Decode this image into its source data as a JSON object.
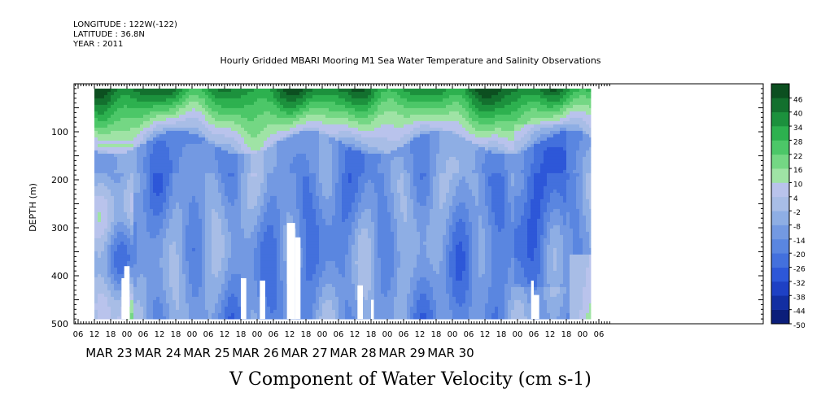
{
  "header": {
    "longitude": "LONGITUDE : 122W(-122)",
    "latitude": "LATITUDE : 36.8N",
    "year": "YEAR : 2011"
  },
  "chart_data": {
    "type": "heatmap",
    "title": "Hourly Gridded MBARI Mooring M1 Sea Water Temperature and Salinity Observations",
    "xlabel": "V Component of Water Velocity (cm s-1)",
    "ylabel": "DEPTH (m)",
    "y_range": [
      0,
      500
    ],
    "y_inverted": true,
    "y_ticks": [
      100,
      200,
      300,
      400,
      500
    ],
    "x_range_hours": [
      0,
      180
    ],
    "hour_ticks": [
      {
        "h": 0,
        "label": "06"
      },
      {
        "h": 6,
        "label": "12"
      },
      {
        "h": 12,
        "label": "18"
      },
      {
        "h": 18,
        "label": "00"
      },
      {
        "h": 24,
        "label": "06"
      },
      {
        "h": 30,
        "label": "12"
      },
      {
        "h": 36,
        "label": "18"
      },
      {
        "h": 42,
        "label": "00"
      },
      {
        "h": 48,
        "label": "06"
      },
      {
        "h": 54,
        "label": "12"
      },
      {
        "h": 60,
        "label": "18"
      },
      {
        "h": 66,
        "label": "00"
      },
      {
        "h": 72,
        "label": "06"
      },
      {
        "h": 78,
        "label": "12"
      },
      {
        "h": 84,
        "label": "18"
      },
      {
        "h": 90,
        "label": "00"
      },
      {
        "h": 96,
        "label": "06"
      },
      {
        "h": 102,
        "label": "12"
      },
      {
        "h": 108,
        "label": "18"
      },
      {
        "h": 114,
        "label": "00"
      },
      {
        "h": 120,
        "label": "06"
      },
      {
        "h": 126,
        "label": "12"
      },
      {
        "h": 132,
        "label": "18"
      },
      {
        "h": 138,
        "label": "00"
      },
      {
        "h": 144,
        "label": "06"
      },
      {
        "h": 150,
        "label": "12"
      },
      {
        "h": 156,
        "label": "18"
      },
      {
        "h": 162,
        "label": "00"
      },
      {
        "h": 168,
        "label": "06"
      },
      {
        "h": 174,
        "label": "12"
      },
      {
        "h": 180,
        "label": "18"
      },
      {
        "h": 186,
        "label": "00"
      },
      {
        "h": 192,
        "label": "06"
      }
    ],
    "date_labels": [
      {
        "h": 6,
        "label": "MAR 23"
      },
      {
        "h": 24,
        "label": "MAR 24"
      },
      {
        "h": 42,
        "label": "MAR 25"
      },
      {
        "h": 60,
        "label": "MAR 26"
      },
      {
        "h": 78,
        "label": "MAR 27"
      },
      {
        "h": 96,
        "label": "MAR 28"
      },
      {
        "h": 114,
        "label": "MAR 29"
      },
      {
        "h": 132,
        "label": "MAR 30"
      }
    ],
    "colorbar": {
      "levels": [
        -50,
        -44,
        -38,
        -32,
        -26,
        -20,
        -14,
        -8,
        -2,
        4,
        10,
        16,
        22,
        28,
        34,
        40,
        46
      ],
      "label_levels": [
        46,
        40,
        34,
        28,
        22,
        16,
        10,
        4,
        -2,
        -8,
        -14,
        -20,
        -26,
        -32,
        -38,
        -44,
        -50
      ],
      "colors": [
        "#0b1e7a",
        "#122ea2",
        "#1e40c4",
        "#2d57d8",
        "#4370dd",
        "#5a86e0",
        "#7399e2",
        "#8eaee4",
        "#a8bde6",
        "#b9c3ec",
        "#9fe3a5",
        "#74d784",
        "#4cc768",
        "#2db14f",
        "#1c913d",
        "#13702e",
        "#0c4f20"
      ]
    },
    "data_hours": [
      6,
      189
    ],
    "data_depth": [
      10,
      490
    ],
    "description_ranges": {
      "surface_layer_depth": [
        10,
        120
      ],
      "surface_values": [
        10,
        46
      ],
      "interior_values": [
        -40,
        -2
      ]
    }
  }
}
